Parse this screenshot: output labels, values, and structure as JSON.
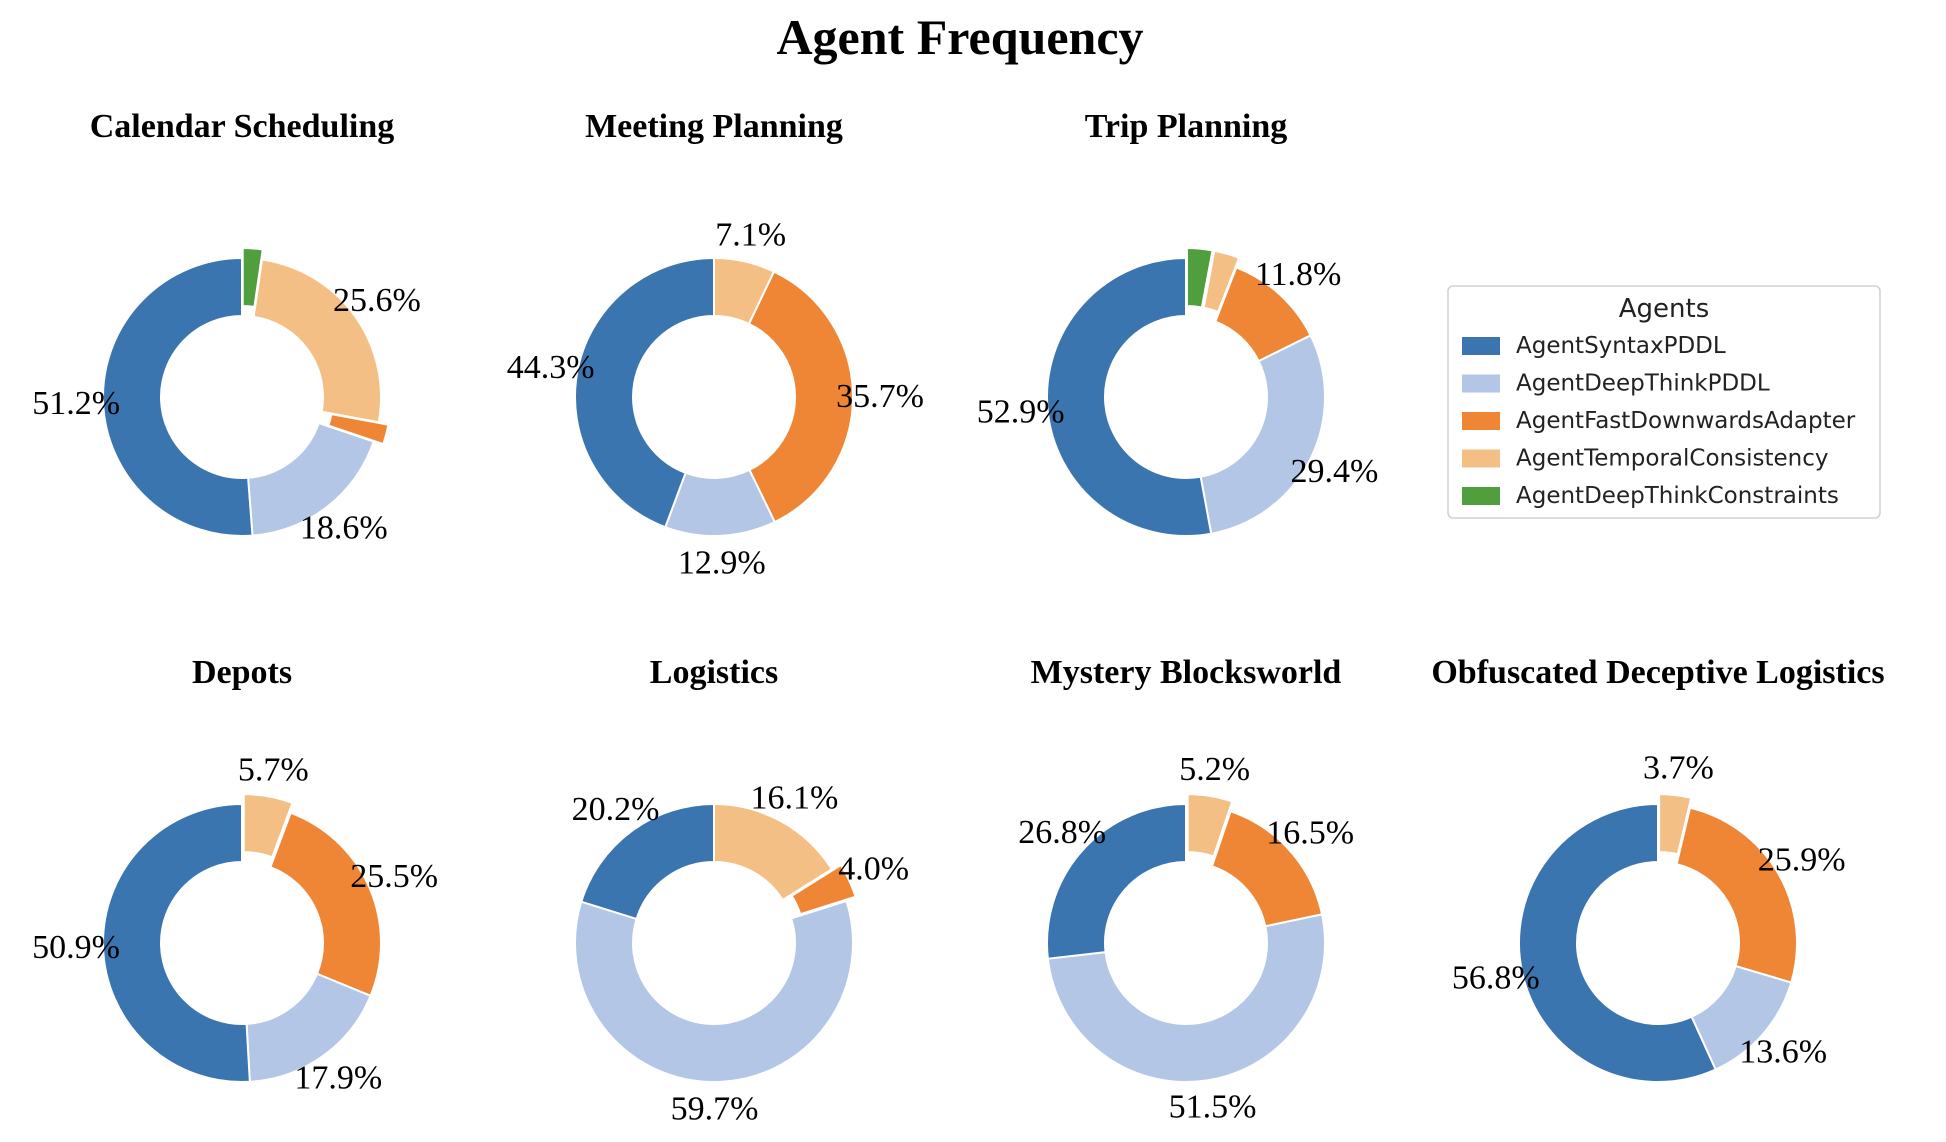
{
  "chart_data": {
    "title": "Agent Frequency",
    "type": "pie",
    "style": "donut",
    "legend": {
      "title": "Agents",
      "placement": "right of top row",
      "entries": [
        {
          "label": "AgentSyntaxPDDL",
          "color": "#3b75af"
        },
        {
          "label": "AgentDeepThinkPDDL",
          "color": "#b3c6e6"
        },
        {
          "label": "AgentFastDownwardsAdapter",
          "color": "#ef8636"
        },
        {
          "label": "AgentTemporalConsistency",
          "color": "#f4bf84"
        },
        {
          "label": "AgentDeepThinkConstraints",
          "color": "#519e3e"
        }
      ]
    },
    "panels": [
      {
        "title": "Calendar Scheduling",
        "slices": [
          {
            "agent": "AgentDeepThinkConstraints",
            "value": 2.3,
            "label": "",
            "explode": true
          },
          {
            "agent": "AgentTemporalConsistency",
            "value": 25.6,
            "label": "25.6%"
          },
          {
            "agent": "AgentFastDownwardsAdapter",
            "value": 2.3,
            "label": "",
            "explode": true
          },
          {
            "agent": "AgentDeepThinkPDDL",
            "value": 18.6,
            "label": "18.6%"
          },
          {
            "agent": "AgentSyntaxPDDL",
            "value": 51.2,
            "label": "51.2%"
          }
        ]
      },
      {
        "title": "Meeting Planning",
        "slices": [
          {
            "agent": "AgentTemporalConsistency",
            "value": 7.1,
            "label": "7.1%"
          },
          {
            "agent": "AgentFastDownwardsAdapter",
            "value": 35.7,
            "label": "35.7%"
          },
          {
            "agent": "AgentDeepThinkPDDL",
            "value": 12.9,
            "label": "12.9%"
          },
          {
            "agent": "AgentSyntaxPDDL",
            "value": 44.3,
            "label": "44.3%"
          }
        ]
      },
      {
        "title": "Trip Planning",
        "slices": [
          {
            "agent": "AgentDeepThinkConstraints",
            "value": 2.95,
            "label": "",
            "explode": true
          },
          {
            "agent": "AgentTemporalConsistency",
            "value": 2.95,
            "label": "",
            "explode": true
          },
          {
            "agent": "AgentFastDownwardsAdapter",
            "value": 11.8,
            "label": "11.8%"
          },
          {
            "agent": "AgentDeepThinkPDDL",
            "value": 29.4,
            "label": "29.4%"
          },
          {
            "agent": "AgentSyntaxPDDL",
            "value": 52.9,
            "label": "52.9%"
          }
        ]
      },
      {
        "title": "Depots",
        "slices": [
          {
            "agent": "AgentTemporalConsistency",
            "value": 5.7,
            "label": "5.7%",
            "explode": true
          },
          {
            "agent": "AgentFastDownwardsAdapter",
            "value": 25.5,
            "label": "25.5%"
          },
          {
            "agent": "AgentDeepThinkPDDL",
            "value": 17.9,
            "label": "17.9%"
          },
          {
            "agent": "AgentSyntaxPDDL",
            "value": 50.9,
            "label": "50.9%"
          }
        ]
      },
      {
        "title": "Logistics",
        "slices": [
          {
            "agent": "AgentTemporalConsistency",
            "value": 16.1,
            "label": "16.1%"
          },
          {
            "agent": "AgentFastDownwardsAdapter",
            "value": 4.0,
            "label": "4.0%",
            "explode": true
          },
          {
            "agent": "AgentDeepThinkPDDL",
            "value": 59.7,
            "label": "59.7%"
          },
          {
            "agent": "AgentSyntaxPDDL",
            "value": 20.2,
            "label": "20.2%"
          }
        ]
      },
      {
        "title": "Mystery Blocksworld",
        "slices": [
          {
            "agent": "AgentTemporalConsistency",
            "value": 5.2,
            "label": "5.2%",
            "explode": true
          },
          {
            "agent": "AgentFastDownwardsAdapter",
            "value": 16.5,
            "label": "16.5%"
          },
          {
            "agent": "AgentDeepThinkPDDL",
            "value": 51.5,
            "label": "51.5%"
          },
          {
            "agent": "AgentSyntaxPDDL",
            "value": 26.8,
            "label": "26.8%"
          }
        ]
      },
      {
        "title": "Obfuscated Deceptive Logistics",
        "slices": [
          {
            "agent": "AgentTemporalConsistency",
            "value": 3.7,
            "label": "3.7%",
            "explode": true
          },
          {
            "agent": "AgentFastDownwardsAdapter",
            "value": 25.9,
            "label": "25.9%"
          },
          {
            "agent": "AgentDeepThinkPDDL",
            "value": 13.6,
            "label": "13.6%"
          },
          {
            "agent": "AgentSyntaxPDDL",
            "value": 56.8,
            "label": "56.8%"
          }
        ]
      }
    ]
  }
}
